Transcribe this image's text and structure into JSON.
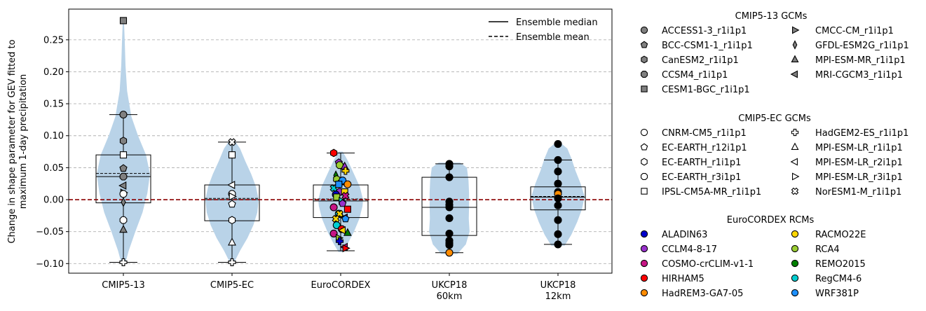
{
  "chart_data": {
    "type": "violin",
    "ylabel": "Change in shape parameter for GEV fitted to\nmaximum 1-day precipitation",
    "ylim": [
      -0.115,
      0.298
    ],
    "yticks": [
      "−0.10",
      "−0.05",
      "0.00",
      "0.05",
      "0.10",
      "0.15",
      "0.20",
      "0.25"
    ],
    "ytick_values": [
      -0.1,
      -0.05,
      0.0,
      0.05,
      0.1,
      0.15,
      0.2,
      0.25
    ],
    "grid": "horizontal dashed",
    "zero_line_color": "#8b0000",
    "violin_color": "#b9d3e8",
    "categories": [
      "CMIP5-13",
      "CMIP5-EC",
      "EuroCORDEX",
      "UKCP18\n60km",
      "UKCP18\n12km"
    ],
    "legend_lines": [
      {
        "label": "Ensemble median",
        "style": "solid"
      },
      {
        "label": "Ensemble mean",
        "style": "dashed"
      }
    ],
    "legend_groups": [
      {
        "title": "CMIP5-13 GCMs",
        "fill": "#808080",
        "entries": [
          {
            "label": "ACCESS1-3_r1i1p1",
            "marker": "circle"
          },
          {
            "label": "BCC-CSM1-1_r1i1p1",
            "marker": "pentagon"
          },
          {
            "label": "CanESM2_r1i1p1",
            "marker": "hexagon"
          },
          {
            "label": "CCSM4_r1i1p1",
            "marker": "octagon"
          },
          {
            "label": "CESM1-BGC_r1i1p1",
            "marker": "square"
          },
          {
            "label": "CMCC-CM_r1i1p1",
            "marker": "tri-right"
          },
          {
            "label": "GFDL-ESM2G_r1i1p1",
            "marker": "thin-diamond"
          },
          {
            "label": "MPI-ESM-MR_r1i1p1",
            "marker": "tri-up"
          },
          {
            "label": "MRI-CGCM3_r1i1p1",
            "marker": "tri-left"
          }
        ]
      },
      {
        "title": "CMIP5-EC GCMs",
        "fill": "#ffffff",
        "entries": [
          {
            "label": "CNRM-CM5_r1i1p1",
            "marker": "circle"
          },
          {
            "label": "EC-EARTH_r12i1p1",
            "marker": "pentagon"
          },
          {
            "label": "EC-EARTH_r1i1p1",
            "marker": "hexagon"
          },
          {
            "label": "EC-EARTH_r3i1p1",
            "marker": "octagon"
          },
          {
            "label": "IPSL-CM5A-MR_r1i1p1",
            "marker": "square"
          },
          {
            "label": "HadGEM2-ES_r1i1p1",
            "marker": "plus"
          },
          {
            "label": "MPI-ESM-LR_r1i1p1",
            "marker": "tri-up"
          },
          {
            "label": "MPI-ESM-LR_r2i1p1",
            "marker": "tri-left"
          },
          {
            "label": "MPI-ESM-LR_r3i1p1",
            "marker": "tri-right"
          },
          {
            "label": "NorESM1-M_r1i1p1",
            "marker": "x"
          }
        ]
      },
      {
        "title": "EuroCORDEX RCMs",
        "entries": [
          {
            "label": "ALADIN63",
            "color": "#0000cd"
          },
          {
            "label": "CCLM4-8-17",
            "color": "#9932cc"
          },
          {
            "label": "COSMO-crCLIM-v1-1",
            "color": "#c71585"
          },
          {
            "label": "HIRHAM5",
            "color": "#ff0000"
          },
          {
            "label": "HadREM3-GA7-05",
            "color": "#ff8c00"
          },
          {
            "label": "RACMO22E",
            "color": "#ffd700"
          },
          {
            "label": "RCA4",
            "color": "#9acd32"
          },
          {
            "label": "REMO2015",
            "color": "#008000"
          },
          {
            "label": "RegCM4-6",
            "color": "#00ced1"
          },
          {
            "label": "WRF381P",
            "color": "#1e90ff"
          }
        ]
      }
    ],
    "groups": [
      {
        "category": "CMIP5-13",
        "box": {
          "q1": -0.005,
          "median": 0.036,
          "q3": 0.07,
          "whisker_low": -0.098,
          "whisker_high": 0.133,
          "mean": 0.041
        },
        "violin": [
          [
            -0.102,
            0.06
          ],
          [
            -0.08,
            0.2
          ],
          [
            -0.05,
            0.45
          ],
          [
            -0.02,
            0.72
          ],
          [
            0.01,
            0.9
          ],
          [
            0.04,
            1.0
          ],
          [
            0.07,
            0.85
          ],
          [
            0.1,
            0.55
          ],
          [
            0.13,
            0.3
          ],
          [
            0.17,
            0.14
          ],
          [
            0.21,
            0.08
          ],
          [
            0.25,
            0.05
          ],
          [
            0.282,
            0.02
          ]
        ],
        "points": [
          {
            "model": "ACCESS1-3_r1i1p1",
            "marker": "circle",
            "fill": "#808080",
            "value": 0.133
          },
          {
            "model": "BCC-CSM1-1_r1i1p1",
            "marker": "pentagon",
            "fill": "#808080",
            "value": 0.049
          },
          {
            "model": "CanESM2_r1i1p1",
            "marker": "hexagon",
            "fill": "#808080",
            "value": 0.092
          },
          {
            "model": "CCSM4_r1i1p1",
            "marker": "octagon",
            "fill": "#808080",
            "value": 0.036
          },
          {
            "model": "CESM1-BGC_r1i1p1",
            "marker": "square",
            "fill": "#808080",
            "value": 0.28
          },
          {
            "model": "CMCC-CM_r1i1p1",
            "marker": "tri-right",
            "fill": "#808080",
            "value": 0.011
          },
          {
            "model": "GFDL-ESM2G_r1i1p1",
            "marker": "thin-diamond",
            "fill": "#808080",
            "value": -0.004
          },
          {
            "model": "MPI-ESM-MR_r1i1p1",
            "marker": "tri-up",
            "fill": "#808080",
            "value": -0.047
          },
          {
            "model": "MRI-CGCM3_r1i1p1",
            "marker": "tri-left",
            "fill": "#808080",
            "value": 0.022
          },
          {
            "model": "CNRM-CM5_r1i1p1",
            "marker": "circle",
            "fill": "#ffffff",
            "value": 0.009
          },
          {
            "model": "EC-EARTH_r3i1p1",
            "marker": "octagon",
            "fill": "#ffffff",
            "value": -0.032
          },
          {
            "model": "IPSL-CM5A-MR_r1i1p1",
            "marker": "square",
            "fill": "#ffffff",
            "value": 0.07
          },
          {
            "model": "HadGEM2-ES_r1i1p1",
            "marker": "plus",
            "fill": "#ffffff",
            "value": -0.098
          }
        ]
      },
      {
        "category": "CMIP5-EC",
        "box": {
          "q1": -0.033,
          "median": 0.0,
          "q3": 0.023,
          "whisker_low": -0.098,
          "whisker_high": 0.09,
          "mean": 0.002
        },
        "violin": [
          [
            -0.1,
            0.06
          ],
          [
            -0.08,
            0.3
          ],
          [
            -0.06,
            0.58
          ],
          [
            -0.04,
            0.8
          ],
          [
            -0.02,
            0.95
          ],
          [
            0.0,
            1.0
          ],
          [
            0.02,
            0.9
          ],
          [
            0.04,
            0.72
          ],
          [
            0.06,
            0.5
          ],
          [
            0.08,
            0.3
          ],
          [
            0.092,
            0.1
          ]
        ],
        "points": [
          {
            "model": "CNRM-CM5_r1i1p1",
            "marker": "circle",
            "fill": "#ffffff",
            "value": 0.009
          },
          {
            "model": "EC-EARTH_r12i1p1",
            "marker": "pentagon",
            "fill": "#ffffff",
            "value": -0.007
          },
          {
            "model": "EC-EARTH_r1i1p1",
            "marker": "hexagon",
            "fill": "#ffffff",
            "value": -0.032
          },
          {
            "model": "IPSL-CM5A-MR_r1i1p1",
            "marker": "square",
            "fill": "#ffffff",
            "value": 0.07
          },
          {
            "model": "HadGEM2-ES_r1i1p1",
            "marker": "plus",
            "fill": "#ffffff",
            "value": -0.098
          },
          {
            "model": "MPI-ESM-LR_r1i1p1",
            "marker": "tri-up",
            "fill": "#ffffff",
            "value": -0.067
          },
          {
            "model": "MPI-ESM-LR_r2i1p1",
            "marker": "tri-left",
            "fill": "#ffffff",
            "value": 0.023
          },
          {
            "model": "MPI-ESM-LR_r3i1p1",
            "marker": "tri-right",
            "fill": "#ffffff",
            "value": 0.005
          },
          {
            "model": "NorESM1-M_r1i1p1",
            "marker": "x",
            "fill": "#ffffff",
            "value": 0.09
          }
        ]
      },
      {
        "category": "EuroCORDEX",
        "box": {
          "q1": -0.028,
          "median": -0.002,
          "q3": 0.023,
          "whisker_low": -0.08,
          "whisker_high": 0.073,
          "mean": 0.001
        },
        "violin": [
          [
            -0.082,
            0.08
          ],
          [
            -0.07,
            0.25
          ],
          [
            -0.05,
            0.5
          ],
          [
            -0.03,
            0.7
          ],
          [
            -0.01,
            0.82
          ],
          [
            0.0,
            0.84
          ],
          [
            0.02,
            0.72
          ],
          [
            0.04,
            0.5
          ],
          [
            0.06,
            0.28
          ],
          [
            0.075,
            0.08
          ]
        ],
        "points": [
          {
            "color": "#ff0000",
            "marker": "hexagon",
            "value": 0.073
          },
          {
            "color": "#9932cc",
            "marker": "pentagon",
            "value": 0.058
          },
          {
            "color": "#9acd32",
            "marker": "octagon",
            "value": 0.054
          },
          {
            "color": "#9932cc",
            "marker": "tri-up",
            "value": 0.052
          },
          {
            "color": "#ffd700",
            "marker": "plus",
            "value": 0.045
          },
          {
            "color": "#008000",
            "marker": "thin-diamond",
            "value": 0.038
          },
          {
            "color": "#9acd32",
            "marker": "hexagon",
            "value": 0.032
          },
          {
            "color": "#c71585",
            "marker": "pentagon",
            "value": 0.028
          },
          {
            "color": "#1e90ff",
            "marker": "circle",
            "value": 0.03
          },
          {
            "color": "#ff8c00",
            "marker": "circle",
            "value": 0.024
          },
          {
            "color": "#00ced1",
            "marker": "x",
            "value": 0.018
          },
          {
            "color": "#1e90ff",
            "marker": "square",
            "value": 0.024
          },
          {
            "color": "#9932cc",
            "marker": "circle",
            "value": 0.012
          },
          {
            "color": "#ffd700",
            "marker": "square",
            "value": 0.012
          },
          {
            "color": "#c71585",
            "marker": "x",
            "value": 0.006
          },
          {
            "color": "#0000cd",
            "marker": "circle",
            "value": 0.008
          },
          {
            "color": "#9acd32",
            "marker": "square",
            "value": 0.004
          },
          {
            "color": "#00ced1",
            "marker": "tri-right",
            "value": -0.002
          },
          {
            "color": "#9932cc",
            "marker": "pentagon",
            "value": -0.006
          },
          {
            "color": "#ff0000",
            "marker": "square",
            "value": -0.015
          },
          {
            "color": "#c71585",
            "marker": "circle",
            "value": -0.012
          },
          {
            "color": "#00ced1",
            "marker": "circle",
            "value": -0.022
          },
          {
            "color": "#ffd700",
            "marker": "x",
            "value": -0.022
          },
          {
            "color": "#c71585",
            "marker": "tri-left",
            "value": -0.028
          },
          {
            "color": "#1e90ff",
            "marker": "pentagon",
            "value": -0.03
          },
          {
            "color": "#ffd700",
            "marker": "x",
            "value": -0.03
          },
          {
            "color": "#00ced1",
            "marker": "circle",
            "value": -0.04
          },
          {
            "color": "#ff0000",
            "marker": "circle",
            "value": -0.046
          },
          {
            "color": "#ffd700",
            "marker": "tri-left",
            "value": -0.048
          },
          {
            "color": "#008000",
            "marker": "tri-up",
            "value": -0.052
          },
          {
            "color": "#c71585",
            "marker": "circle",
            "value": -0.053
          },
          {
            "color": "#9acd32",
            "marker": "tri-right",
            "value": -0.06
          },
          {
            "color": "#0000cd",
            "marker": "plus",
            "value": -0.065
          },
          {
            "color": "#c71585",
            "marker": "tri-left",
            "value": -0.074
          },
          {
            "color": "#ff0000",
            "marker": "tri-right",
            "value": -0.076
          }
        ]
      },
      {
        "category": "UKCP18 60km",
        "box": {
          "q1": -0.056,
          "median": -0.012,
          "q3": 0.035,
          "whisker_low": -0.083,
          "whisker_high": 0.056,
          "mean": -0.012
        },
        "violin": [
          [
            -0.085,
            0.3
          ],
          [
            -0.07,
            0.62
          ],
          [
            -0.05,
            0.76
          ],
          [
            -0.03,
            0.73
          ],
          [
            -0.01,
            0.74
          ],
          [
            0.01,
            0.74
          ],
          [
            0.03,
            0.72
          ],
          [
            0.05,
            0.66
          ],
          [
            0.058,
            0.4
          ]
        ],
        "points": [
          {
            "fill": "#000000",
            "marker": "circle",
            "value": 0.056
          },
          {
            "fill": "#000000",
            "marker": "circle",
            "value": 0.052
          },
          {
            "fill": "#000000",
            "marker": "circle",
            "value": 0.035
          },
          {
            "fill": "#000000",
            "marker": "circle",
            "value": -0.003
          },
          {
            "fill": "#000000",
            "marker": "circle",
            "value": -0.008
          },
          {
            "fill": "#000000",
            "marker": "circle",
            "value": -0.012
          },
          {
            "fill": "#000000",
            "marker": "circle",
            "value": -0.029
          },
          {
            "fill": "#000000",
            "marker": "circle",
            "value": -0.053
          },
          {
            "fill": "#000000",
            "marker": "circle",
            "value": -0.064
          },
          {
            "fill": "#000000",
            "marker": "circle",
            "value": -0.068
          },
          {
            "fill": "#000000",
            "marker": "circle",
            "value": -0.071
          },
          {
            "fill": "#ff8c00",
            "marker": "circle",
            "value": -0.083
          }
        ]
      },
      {
        "category": "UKCP18 12km",
        "box": {
          "q1": -0.016,
          "median": 0.004,
          "q3": 0.02,
          "whisker_low": -0.07,
          "whisker_high": 0.062,
          "mean": 0.005
        },
        "violin": [
          [
            -0.072,
            0.25
          ],
          [
            -0.055,
            0.5
          ],
          [
            -0.035,
            0.72
          ],
          [
            -0.015,
            0.9
          ],
          [
            0.005,
            1.0
          ],
          [
            0.025,
            0.85
          ],
          [
            0.045,
            0.66
          ],
          [
            0.065,
            0.5
          ],
          [
            0.08,
            0.35
          ],
          [
            0.088,
            0.12
          ]
        ],
        "points": [
          {
            "fill": "#000000",
            "marker": "circle",
            "value": 0.087
          },
          {
            "fill": "#000000",
            "marker": "circle",
            "value": 0.062
          },
          {
            "fill": "#000000",
            "marker": "circle",
            "value": 0.044
          },
          {
            "fill": "#000000",
            "marker": "circle",
            "value": 0.025
          },
          {
            "fill": "#000000",
            "marker": "circle",
            "value": 0.012
          },
          {
            "fill": "#ff8c00",
            "marker": "circle",
            "value": 0.009
          },
          {
            "fill": "#000000",
            "marker": "circle",
            "value": 0.002
          },
          {
            "fill": "#000000",
            "marker": "circle",
            "value": -0.009
          },
          {
            "fill": "#000000",
            "marker": "circle",
            "value": -0.032
          },
          {
            "fill": "#000000",
            "marker": "circle",
            "value": -0.054
          },
          {
            "fill": "#000000",
            "marker": "circle",
            "value": -0.07
          }
        ]
      }
    ]
  }
}
